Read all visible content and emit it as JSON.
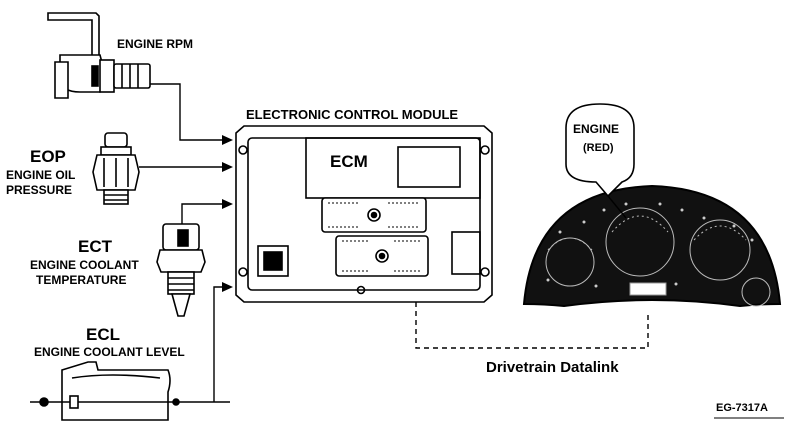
{
  "sensors": {
    "rpm": {
      "name": "ENGINE RPM"
    },
    "eop": {
      "abbr": "EOP",
      "line1": "ENGINE OIL",
      "line2": "PRESSURE"
    },
    "ect": {
      "abbr": "ECT",
      "line1": "ENGINE COOLANT",
      "line2": "TEMPERATURE"
    },
    "ecl": {
      "abbr": "ECL",
      "line1": "ENGINE COOLANT LEVEL"
    }
  },
  "module": {
    "title": "ELECTRONIC CONTROL MODULE",
    "short": "ECM"
  },
  "cluster": {
    "lamp_label": "ENGINE",
    "lamp_color_label": "(RED)"
  },
  "datalink": {
    "label": "Drivetrain Datalink"
  },
  "figure_id": "EG-7317A",
  "colors": {
    "ink": "#000000",
    "panel": "#111111",
    "module_fill": "#ffffff"
  }
}
